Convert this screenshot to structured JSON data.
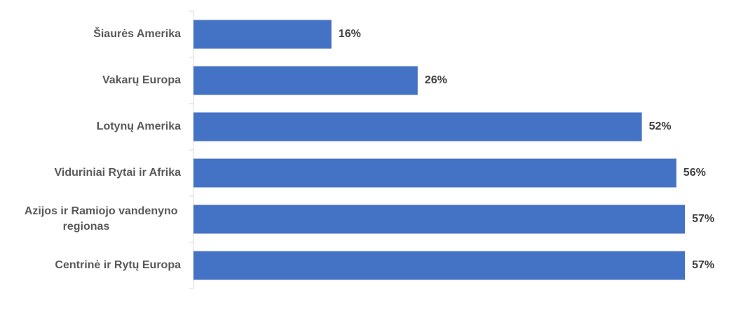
{
  "chart_data": {
    "type": "bar",
    "orientation": "horizontal",
    "categories": [
      "Šiaurės Amerika",
      "Vakarų Europa",
      "Lotynų Amerika",
      "Viduriniai Rytai ir Afrika",
      "Azijos ir Ramiojo vandenyno regionas",
      "Centrinė ir Rytų Europa"
    ],
    "values": [
      16,
      26,
      52,
      56,
      57,
      57
    ],
    "value_labels": [
      "16%",
      "26%",
      "52%",
      "56%",
      "57%",
      "57%"
    ],
    "color": "#4472c4",
    "xlim": [
      0,
      60
    ]
  }
}
